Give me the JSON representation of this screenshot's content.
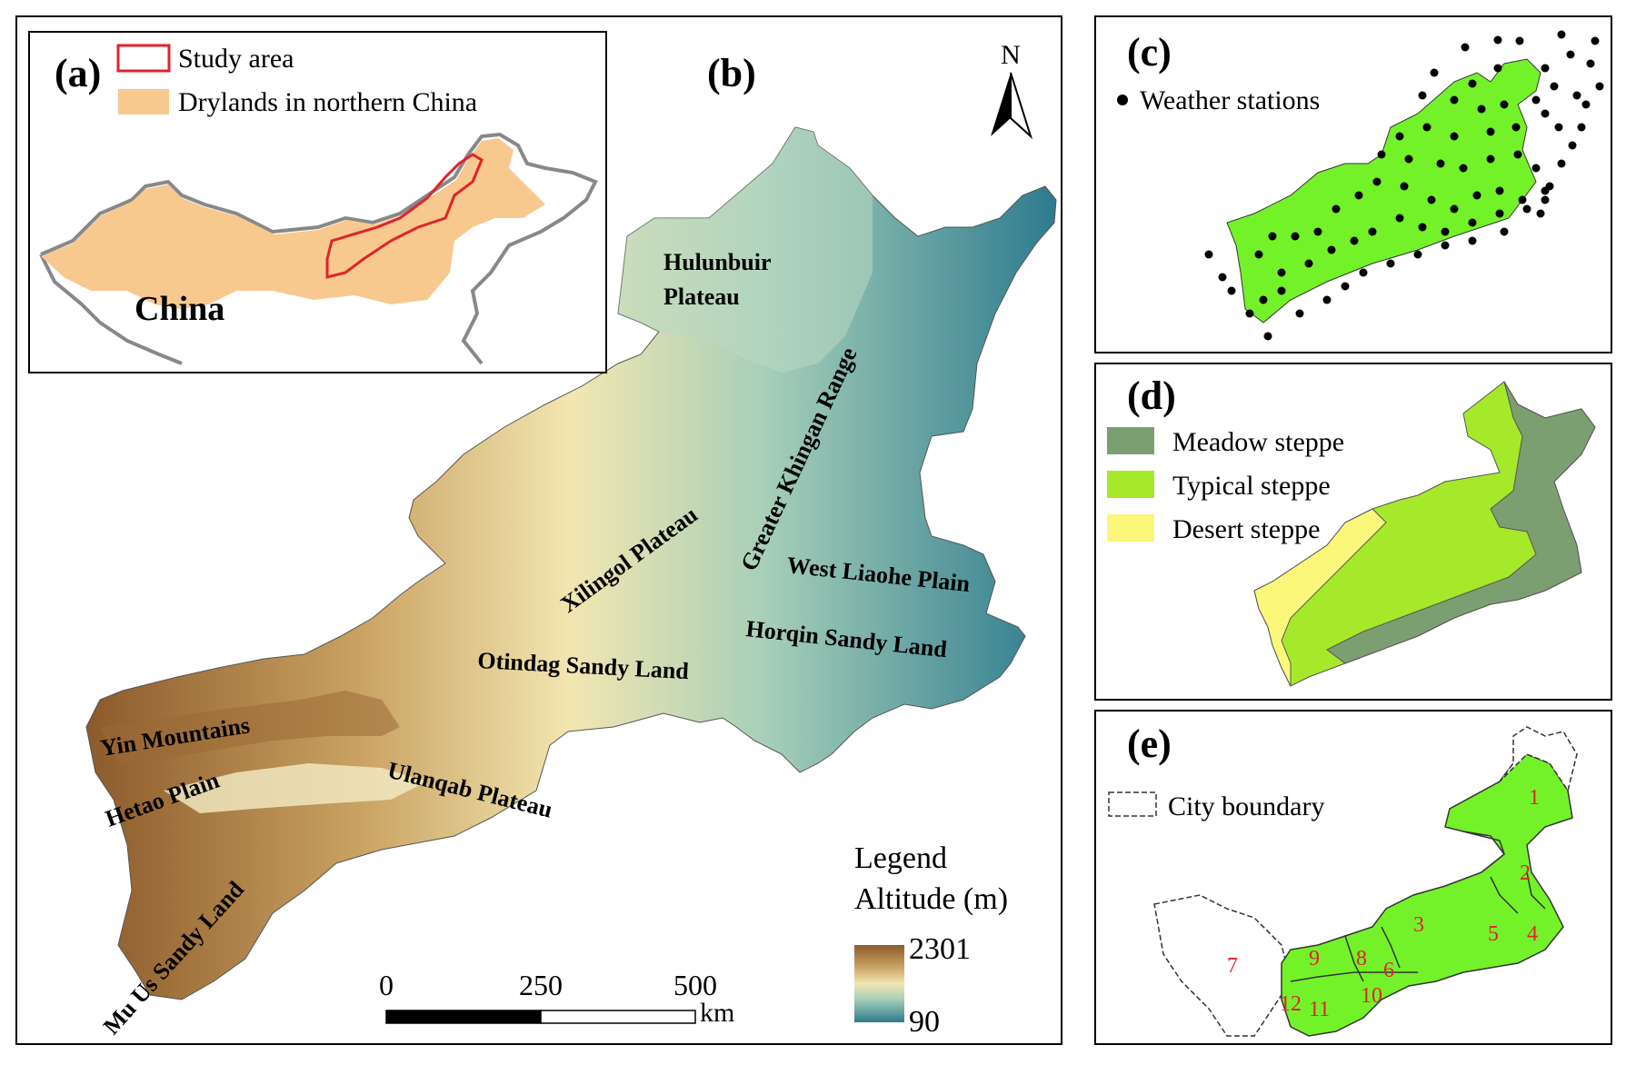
{
  "panel_a": {
    "letter": "(a)",
    "legend": [
      {
        "label": "Study area",
        "color": "#e0232b"
      },
      {
        "label": "Drylands in northern China",
        "color": "#f8c98f"
      }
    ],
    "country_label": "China"
  },
  "panel_b": {
    "letter": "(b)",
    "north_label": "N",
    "region_labels": {
      "hulunbuir": [
        "Hulunbuir",
        "Plateau"
      ],
      "greater_khingan": "Greater Khingan Range",
      "xilingol": "Xilingol Plateau",
      "west_liaohe": "West Liaohe Plain",
      "horqin": "Horqin Sandy Land",
      "otindag": "Otindag Sandy Land",
      "yin": "Yin Mountains",
      "hetao": "Hetao Plain",
      "ulanqab": "Ulanqab Plateau",
      "mu_us": "Mu Us Sandy Land"
    },
    "legend": {
      "title": "Legend",
      "subtitle": "Altitude (m)",
      "max": "2301",
      "min": "90",
      "colors": [
        "#8c5a2b",
        "#c9a262",
        "#f2e6b1",
        "#a7cfb8",
        "#2d7b8f"
      ]
    },
    "scale": {
      "ticks": [
        "0",
        "250",
        "500"
      ],
      "unit": "km"
    }
  },
  "panel_c": {
    "letter": "(c)",
    "legend_label": "Weather stations",
    "fill": "#73f22a"
  },
  "panel_d": {
    "letter": "(d)",
    "legend": [
      {
        "label": "Meadow steppe",
        "color": "#7c9f71"
      },
      {
        "label": "Typical steppe",
        "color": "#a6e82a"
      },
      {
        "label": "Desert steppe",
        "color": "#fbf77a"
      }
    ]
  },
  "panel_e": {
    "letter": "(e)",
    "legend_label": "City boundary",
    "city_numbers": [
      "1",
      "2",
      "3",
      "4",
      "5",
      "6",
      "7",
      "8",
      "9",
      "10",
      "11",
      "12"
    ]
  }
}
